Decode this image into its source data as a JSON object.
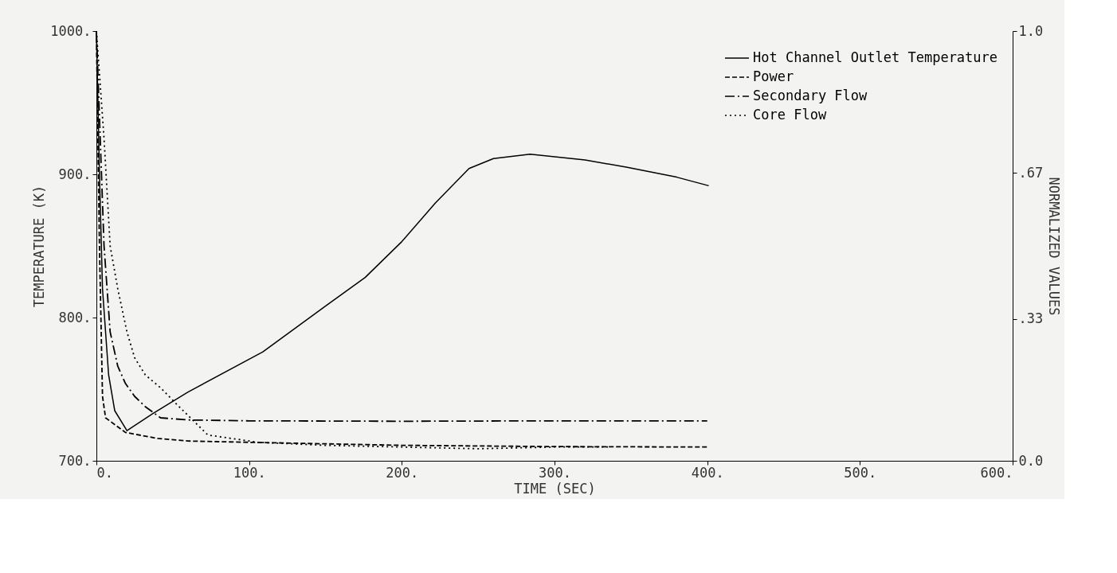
{
  "chart_data": {
    "type": "line",
    "xlabel": "TIME (SEC)",
    "ylabel": "TEMPERATURE (K)",
    "y2label": "NORMALIZED VALUES",
    "xlim": [
      0,
      600
    ],
    "ylim": [
      700,
      1000
    ],
    "y2lim": [
      0,
      1
    ],
    "xticks": [
      {
        "value": 0,
        "label": "0."
      },
      {
        "value": 100,
        "label": "100."
      },
      {
        "value": 200,
        "label": "200."
      },
      {
        "value": 300,
        "label": "300."
      },
      {
        "value": 400,
        "label": "400."
      },
      {
        "value": 500,
        "label": "500."
      },
      {
        "value": 600,
        "label": "600."
      }
    ],
    "yticks": [
      {
        "value": 700,
        "label": "700."
      },
      {
        "value": 800,
        "label": "800."
      },
      {
        "value": 900,
        "label": "900."
      },
      {
        "value": 1000,
        "label": "1000."
      }
    ],
    "y2ticks": [
      {
        "value": 0,
        "label": "0.0"
      },
      {
        "value": 0.33,
        "label": ".33"
      },
      {
        "value": 0.67,
        "label": ".67"
      },
      {
        "value": 1,
        "label": "1.0"
      }
    ],
    "grid": false,
    "legend": "top right",
    "marker": "none",
    "series": [
      {
        "name": "Hot Channel Outlet Temperature",
        "color": "#000000",
        "line_style": "solid",
        "x": [
          0,
          2,
          4,
          8,
          12,
          20,
          37,
          60,
          109,
          150,
          176,
          200,
          222,
          244,
          260,
          284,
          320,
          347,
          380,
          401
        ],
        "values": [
          1000,
          900,
          820,
          760,
          735,
          721,
          733,
          748,
          776,
          808,
          828,
          853,
          880,
          904,
          911,
          914,
          910,
          905,
          898,
          892
        ]
      },
      {
        "name": "Power",
        "color": "#000000",
        "line_style": "dashed",
        "axis": "y2",
        "x": [
          0,
          2,
          4,
          6,
          19,
          40,
          60,
          100,
          200,
          300,
          400
        ],
        "values": [
          1.0,
          0.5,
          0.15,
          0.1,
          0.066,
          0.052,
          0.046,
          0.043,
          0.036,
          0.033,
          0.032
        ]
      },
      {
        "name": "Secondary Flow",
        "color": "#000000",
        "line_style": "dashdot",
        "axis": "y2",
        "x": [
          0,
          2,
          5,
          9,
          14,
          19,
          25,
          32,
          42,
          60,
          100,
          200,
          300,
          400
        ],
        "values": [
          1.0,
          0.8,
          0.5,
          0.3,
          0.22,
          0.18,
          0.15,
          0.126,
          0.1,
          0.095,
          0.093,
          0.092,
          0.093,
          0.093
        ]
      },
      {
        "name": "Core Flow",
        "color": "#000000",
        "line_style": "dotted",
        "axis": "y2",
        "x": [
          0,
          5,
          9,
          14,
          20,
          25,
          32,
          42,
          53,
          73,
          106,
          150,
          200,
          250,
          300,
          335
        ],
        "values": [
          1.0,
          0.75,
          0.5,
          0.4,
          0.3,
          0.24,
          0.2,
          0.17,
          0.13,
          0.06,
          0.043,
          0.036,
          0.032,
          0.028,
          0.032,
          0.032
        ]
      }
    ]
  }
}
